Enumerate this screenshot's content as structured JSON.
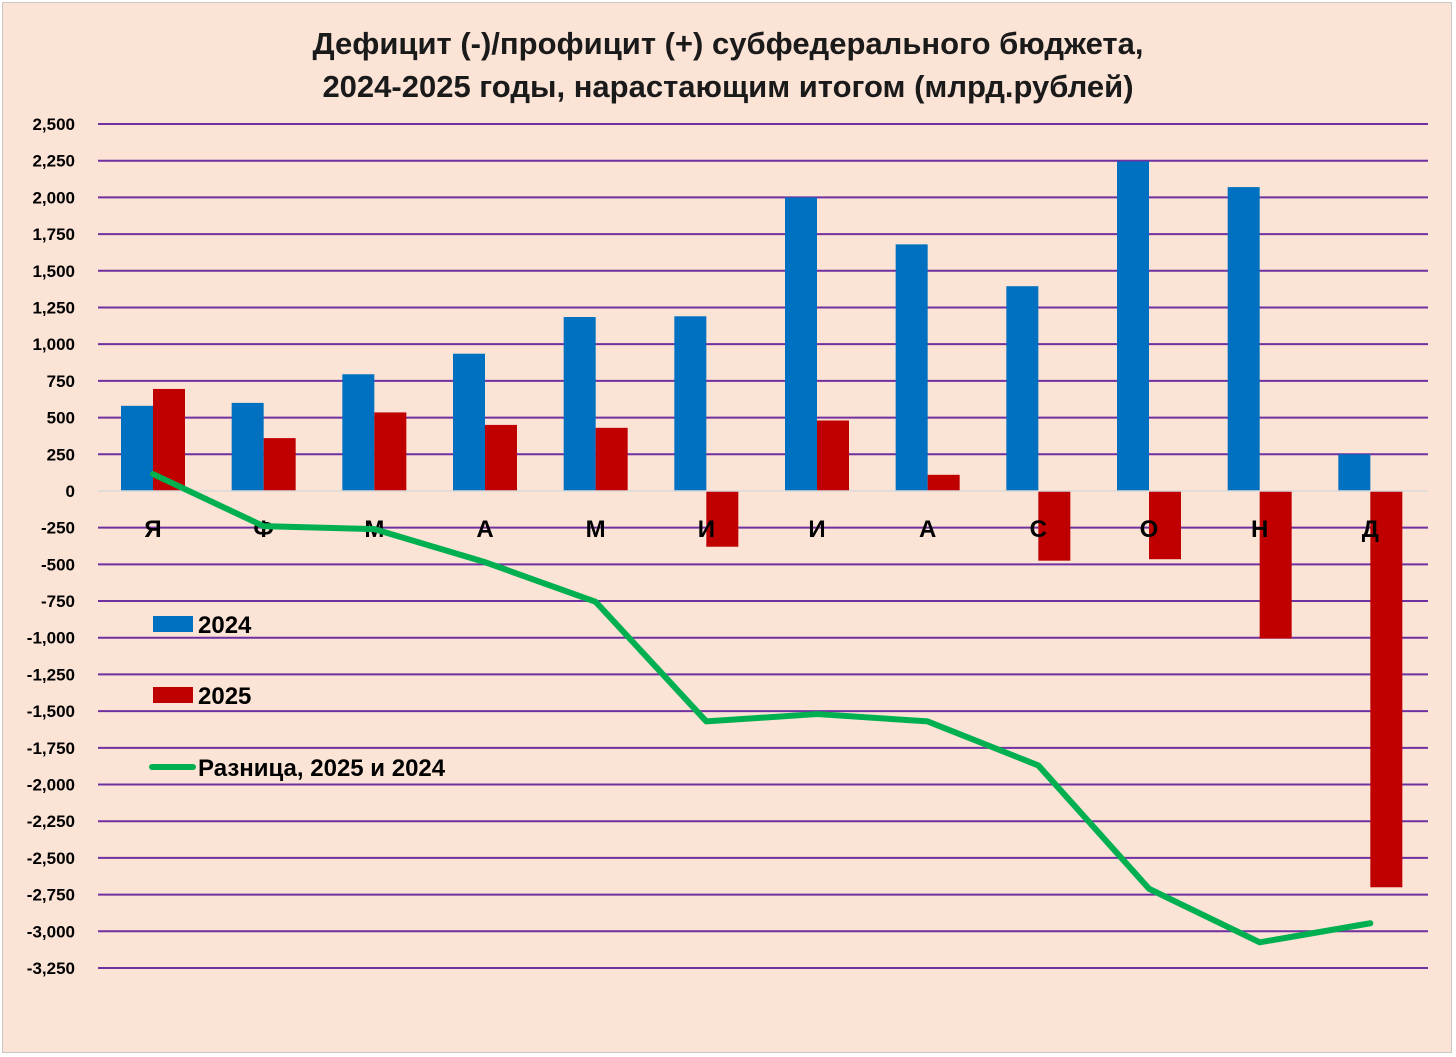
{
  "chart_data": {
    "type": "bar",
    "title": "Дефицит (-)/профицит (+) субфедерального бюджета,",
    "subtitle": "2024-2025 годы,  нарастающим итогом (млрд.рублей)",
    "categories": [
      "Я",
      "Ф",
      "М",
      "А",
      "М",
      "И",
      "И",
      "А",
      "С",
      "О",
      "Н",
      "Д"
    ],
    "ylim": [
      -3250,
      2500
    ],
    "yticks": [
      2500,
      2250,
      2000,
      1750,
      1500,
      1250,
      1000,
      750,
      500,
      250,
      0,
      -250,
      -500,
      -750,
      -1000,
      -1250,
      -1500,
      -1750,
      -2000,
      -2250,
      -2500,
      -2750,
      -3000,
      -3250
    ],
    "ytick_labels": [
      "2,500",
      "2,250",
      "2,000",
      "1,750",
      "1,500",
      "1,250",
      "1,000",
      "750",
      "500",
      "250",
      "0",
      "-250",
      "-500",
      "-750",
      "-1,000",
      "-1,250",
      "-1,500",
      "-1,750",
      "-2,000",
      "-2,250",
      "-2,500",
      "-2,750",
      "-3,000",
      "-3,250"
    ],
    "grid": true,
    "legend_position": "left",
    "series": [
      {
        "name": "2024",
        "type": "bar",
        "color": "#0070c0",
        "values": [
          580,
          600,
          795,
          935,
          1185,
          1190,
          2000,
          1680,
          1395,
          2245,
          2070,
          250
        ]
      },
      {
        "name": "2025",
        "type": "bar",
        "color": "#c00000",
        "values": [
          695,
          360,
          535,
          450,
          430,
          -380,
          480,
          110,
          -475,
          -465,
          -1005,
          -2700
        ]
      },
      {
        "name": "Разница, 2025 и 2024",
        "type": "line",
        "color": "#00b050",
        "values": [
          115,
          -240,
          -260,
          -485,
          -755,
          -1570,
          -1520,
          -1570,
          -1870,
          -2710,
          -3075,
          -2945
        ]
      }
    ]
  }
}
